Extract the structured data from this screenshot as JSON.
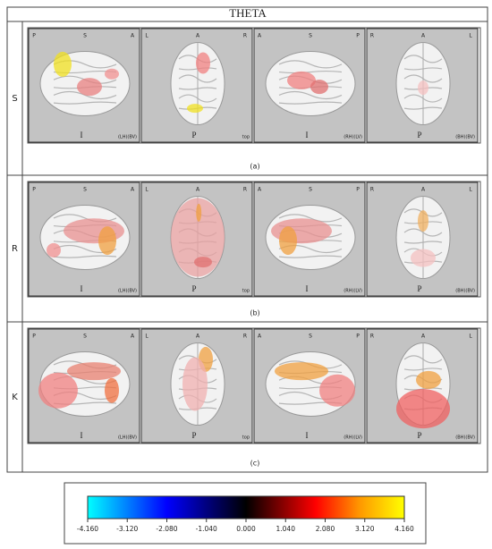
{
  "header": {
    "title": "THETA"
  },
  "rows": [
    {
      "label": "S",
      "caption": "(a)",
      "panels": [
        {
          "top": [
            "P",
            "S",
            "A"
          ],
          "bottom": "I",
          "view": "(LH)(BV)"
        },
        {
          "top": [
            "L",
            "A",
            "R"
          ],
          "bottom": "P",
          "view": "top"
        },
        {
          "top": [
            "A",
            "S",
            "P"
          ],
          "bottom": "I",
          "view": "(RH)(LV)"
        },
        {
          "top": [
            "R",
            "A",
            "L"
          ],
          "bottom": "P",
          "view": "(BH)(BV)"
        }
      ]
    },
    {
      "label": "R",
      "caption": "(b)",
      "panels": [
        {
          "top": [
            "P",
            "S",
            "A"
          ],
          "bottom": "I",
          "view": "(LH)(BV)"
        },
        {
          "top": [
            "L",
            "A",
            "R"
          ],
          "bottom": "P",
          "view": "top"
        },
        {
          "top": [
            "A",
            "S",
            "P"
          ],
          "bottom": "I",
          "view": "(RH)(LV)"
        },
        {
          "top": [
            "R",
            "A",
            "L"
          ],
          "bottom": "P",
          "view": "(BH)(BV)"
        }
      ]
    },
    {
      "label": "K",
      "caption": "(c)",
      "panels": [
        {
          "top": [
            "P",
            "S",
            "A"
          ],
          "bottom": "I",
          "view": "(LH)(BV)"
        },
        {
          "top": [
            "L",
            "A",
            "R"
          ],
          "bottom": "P",
          "view": "top"
        },
        {
          "top": [
            "A",
            "S",
            "P"
          ],
          "bottom": "I",
          "view": "(RH)(LV)"
        },
        {
          "top": [
            "R",
            "A",
            "L"
          ],
          "bottom": "P",
          "view": "(BH)(BV)"
        }
      ]
    }
  ],
  "colorbar": {
    "ticks": [
      "-4.160",
      "-3.120",
      "-2.080",
      "-1.040",
      "0.000",
      "1.040",
      "2.080",
      "3.120",
      "4.160"
    ]
  }
}
